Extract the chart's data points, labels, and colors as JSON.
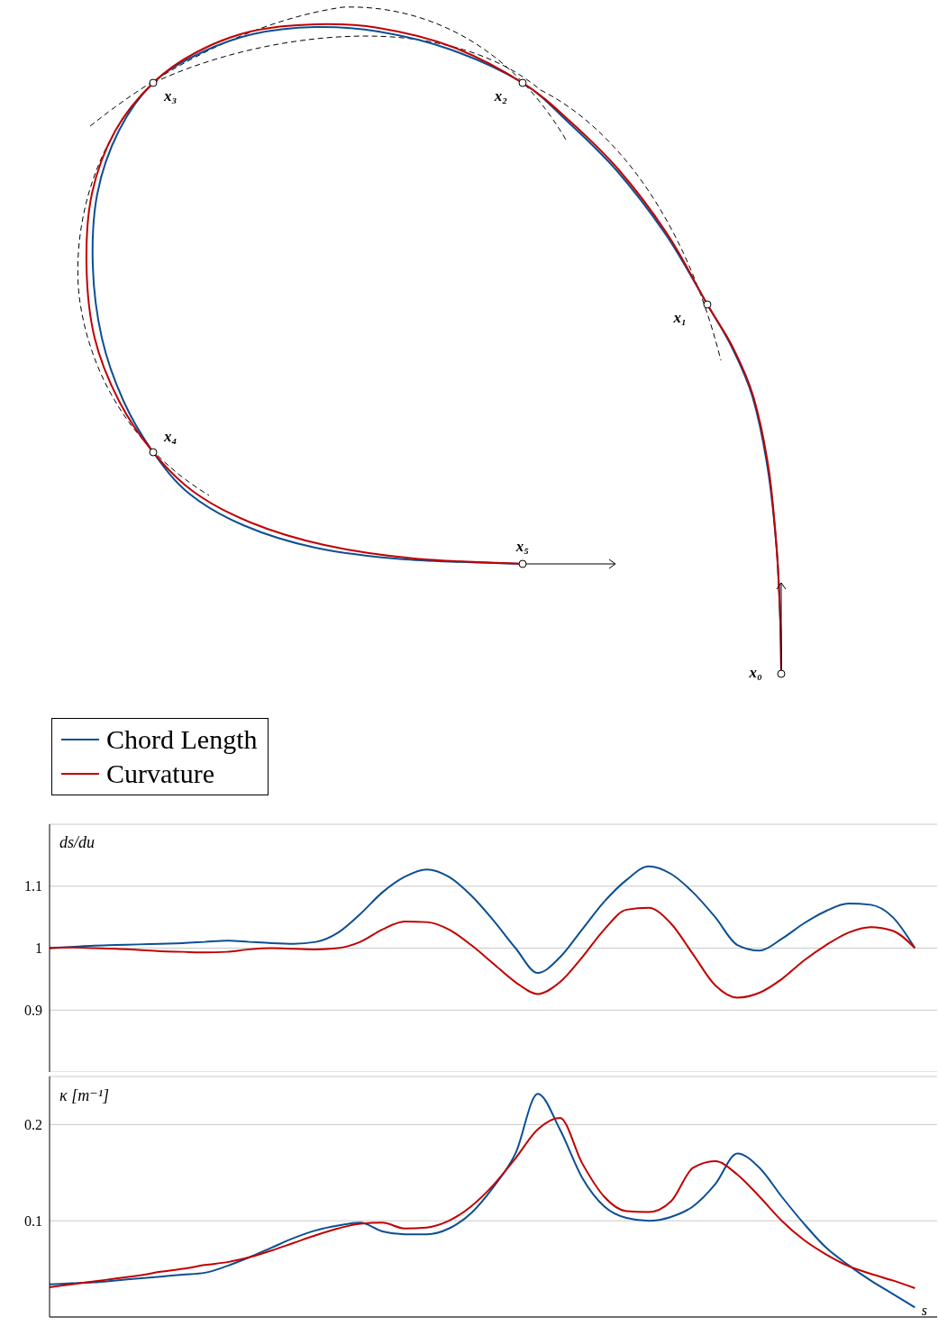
{
  "chart_data": [
    {
      "type": "other",
      "annotations": [
        "x₀",
        "x₁",
        "x₂",
        "x₃",
        "x₄",
        "x₅"
      ]
    },
    {
      "type": "line",
      "ylabel": "ds/du",
      "categories": [
        null,
        null,
        null,
        null,
        null,
        null,
        null,
        null,
        null,
        null,
        null,
        null,
        null,
        null,
        null,
        null,
        null,
        null,
        null,
        null,
        null,
        null,
        null,
        null,
        null,
        null,
        null,
        null,
        null,
        null,
        null,
        null,
        null,
        null,
        null,
        null,
        null,
        null,
        null,
        null,
        null
      ],
      "ylim": [
        0.8,
        1.2
      ],
      "yticks": [
        0.9,
        1,
        1.1
      ],
      "grid": "y",
      "tick_labels": "y",
      "legend": "top left",
      "series": [
        {
          "name": "Chord Length",
          "color": "#0b4f94",
          "values": [
            1.0,
            1.002,
            1.004,
            1.005,
            1.006,
            1.007,
            1.008,
            1.01,
            1.012,
            1.01,
            1.008,
            1.007,
            1.01,
            1.025,
            1.055,
            1.09,
            1.115,
            1.127,
            1.115,
            1.085,
            1.045,
            1.0,
            0.96,
            0.985,
            1.03,
            1.075,
            1.11,
            1.132,
            1.12,
            1.09,
            1.05,
            1.005,
            0.996,
            1.015,
            1.04,
            1.06,
            1.072,
            1.07,
            1.05,
            1.0,
            null
          ]
        },
        {
          "name": "Curvature",
          "color": "#c00000",
          "values": [
            1.0,
            1.001,
            1.0,
            0.999,
            0.997,
            0.995,
            0.994,
            0.993,
            0.994,
            0.998,
            1.0,
            0.999,
            0.998,
            1.0,
            1.01,
            1.03,
            1.043,
            1.042,
            1.03,
            1.005,
            0.975,
            0.945,
            0.926,
            0.945,
            0.985,
            1.03,
            1.062,
            1.065,
            1.04,
            0.99,
            0.94,
            0.92,
            0.928,
            0.95,
            0.98,
            1.005,
            1.025,
            1.034,
            1.028,
            1.0,
            null
          ]
        }
      ]
    },
    {
      "type": "line",
      "ylabel": "κ [m⁻¹]",
      "xlabel": "s",
      "categories": [
        null,
        null,
        null,
        null,
        null,
        null,
        null,
        null,
        null,
        null,
        null,
        null,
        null,
        null,
        null,
        null,
        null,
        null,
        null,
        null,
        null,
        null,
        null,
        null,
        null,
        null,
        null,
        null,
        null,
        null,
        null,
        null,
        null,
        null,
        null,
        null,
        null,
        null,
        null,
        null,
        null
      ],
      "ylim": [
        0,
        0.25
      ],
      "yticks": [
        0.1,
        0.2
      ],
      "grid": "y",
      "tick_labels": "y",
      "series": [
        {
          "color": "#0b4f94",
          "values": [
            0.034,
            0.035,
            0.036,
            0.038,
            0.04,
            0.042,
            0.044,
            0.046,
            0.053,
            0.062,
            0.072,
            0.082,
            0.09,
            0.095,
            0.098,
            0.089,
            0.086,
            0.086,
            0.092,
            0.108,
            0.135,
            0.17,
            0.232,
            0.195,
            0.145,
            0.115,
            0.103,
            0.1,
            0.104,
            0.115,
            0.138,
            0.17,
            0.155,
            0.125,
            0.097,
            0.072,
            0.054,
            0.038,
            0.024,
            0.01,
            null
          ]
        },
        {
          "color": "#c00000",
          "values": [
            0.031,
            0.034,
            0.037,
            0.04,
            0.043,
            0.047,
            0.05,
            0.054,
            0.057,
            0.062,
            0.069,
            0.077,
            0.085,
            0.092,
            0.097,
            0.098,
            0.092,
            0.093,
            0.1,
            0.115,
            0.137,
            0.165,
            0.195,
            0.207,
            0.16,
            0.125,
            0.11,
            0.109,
            0.12,
            0.155,
            0.162,
            0.148,
            0.125,
            0.1,
            0.08,
            0.065,
            0.053,
            0.045,
            0.038,
            0.03,
            null
          ]
        }
      ]
    }
  ]
}
